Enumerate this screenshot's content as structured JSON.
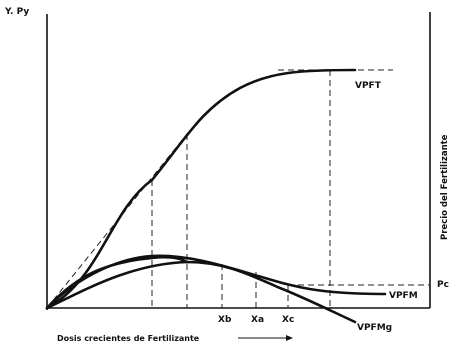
{
  "labels": {
    "y_axis_left": "Y. Py",
    "y_axis_right": "Precio del Fertilizante",
    "price_marker": "Pc",
    "x_axis": "Dosis crecientes de Fertilizante",
    "curve_total": "VPFT",
    "curve_mean": "VPFM",
    "curve_marginal": "VPFMg",
    "dose_b": "Xb",
    "dose_a": "Xa",
    "dose_c": "Xc"
  }
}
